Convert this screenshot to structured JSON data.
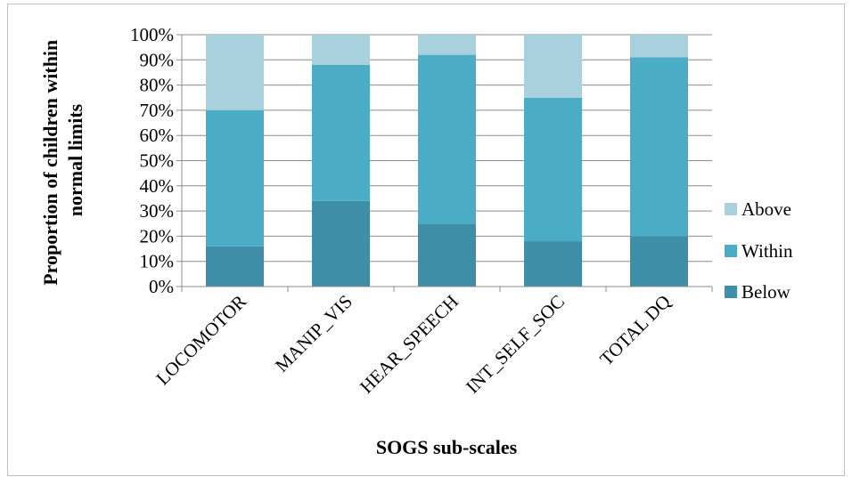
{
  "chart_data": {
    "type": "bar",
    "stacked": true,
    "stack_mode": "percent",
    "title": "",
    "xlabel": "SOGS sub-scales",
    "ylabel_lines": [
      "Proportion of children within",
      "normal limits"
    ],
    "categories": [
      "LOCOMOTOR",
      "MANIP_VIS",
      "HEAR_SPEECH",
      "INT_SELF_SOC",
      "TOTAL DQ"
    ],
    "series": [
      {
        "name": "Below",
        "values": [
          16,
          34,
          25,
          18,
          20
        ],
        "color": "#3d8ea6"
      },
      {
        "name": "Within",
        "values": [
          54,
          54,
          67,
          57,
          71
        ],
        "color": "#4bacc6"
      },
      {
        "name": "Above",
        "values": [
          30,
          12,
          8,
          25,
          9
        ],
        "color": "#a9d0dd"
      }
    ],
    "ylim": [
      0,
      100
    ],
    "yticks": [
      0,
      10,
      20,
      30,
      40,
      50,
      60,
      70,
      80,
      90,
      100
    ],
    "ytick_labels": [
      "0%",
      "10%",
      "20%",
      "30%",
      "40%",
      "50%",
      "60%",
      "70%",
      "80%",
      "90%",
      "100%"
    ],
    "grid": true,
    "legend_position": "right",
    "legend_order": [
      "Above",
      "Within",
      "Below"
    ]
  }
}
